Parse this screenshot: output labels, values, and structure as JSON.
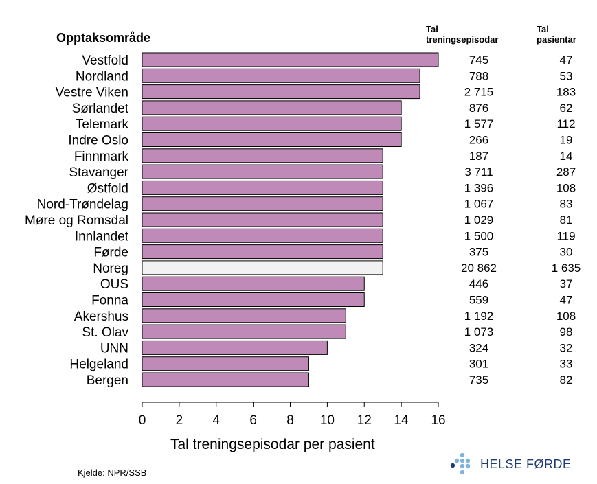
{
  "heading": "Opptaksområde",
  "col_episodes_header": [
    "Tal",
    "treningsepisodar"
  ],
  "col_patients_header": [
    "Tal",
    "pasientar"
  ],
  "source": "Kjelde: NPR/SSB",
  "logo": {
    "text": "HELSE FØRDE",
    "icon": "helse-forde-dots-icon",
    "color": "#1f3d73"
  },
  "colors": {
    "bar": "#c08ab8",
    "national_bar": "#f2f2f2",
    "bar_stroke": "#000000"
  },
  "chart_data": {
    "type": "bar",
    "orientation": "horizontal",
    "categories": [
      "Vestfold",
      "Nordland",
      "Vestre Viken",
      "Sørlandet",
      "Telemark",
      "Indre Oslo",
      "Finnmark",
      "Stavanger",
      "Østfold",
      "Nord-Trøndelag",
      "Møre og Romsdal",
      "Innlandet",
      "Førde",
      "Noreg",
      "OUS",
      "Fonna",
      "Akershus",
      "St. Olav",
      "UNN",
      "Helgeland",
      "Bergen"
    ],
    "values": [
      16,
      15,
      15,
      14,
      14,
      14,
      13,
      13,
      13,
      13,
      13,
      13,
      13,
      13,
      12,
      12,
      11,
      11,
      10,
      9,
      9
    ],
    "highlight": "Noreg",
    "episodes": [
      "745",
      "788",
      "2 715",
      "876",
      "1 577",
      "266",
      "187",
      "3 711",
      "1 396",
      "1 067",
      "1 029",
      "1 500",
      "375",
      "20 862",
      "446",
      "559",
      "1 192",
      "1 073",
      "324",
      "301",
      "735"
    ],
    "patients": [
      "47",
      "53",
      "183",
      "62",
      "112",
      "19",
      "14",
      "287",
      "108",
      "83",
      "81",
      "119",
      "30",
      "1 635",
      "37",
      "47",
      "108",
      "98",
      "32",
      "33",
      "82"
    ],
    "xlabel": "Tal treningsepisodar per pasient",
    "xlim": [
      0,
      16
    ],
    "xticks": [
      0,
      2,
      4,
      6,
      8,
      10,
      12,
      14,
      16
    ],
    "grid": false,
    "legend": "none"
  }
}
